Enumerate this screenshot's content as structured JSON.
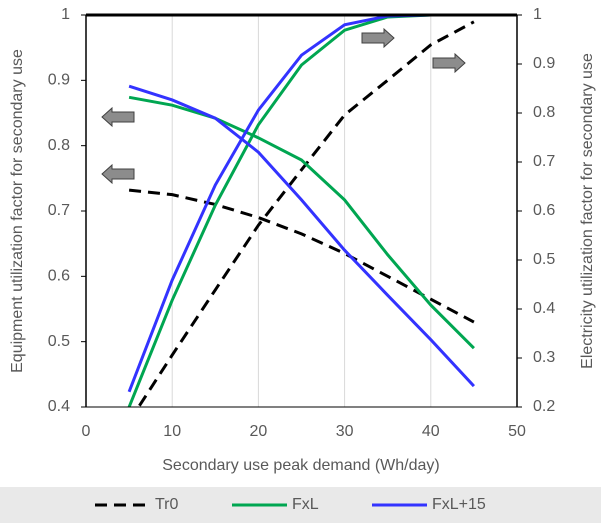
{
  "chart_data": {
    "type": "line",
    "x_label": "Secondary use peak demand (Wh/day)",
    "y_label": "Equipment utilization factor for secondary use",
    "y2_label": "Electricity utilization factor for secondary use",
    "x": [
      5,
      10,
      15,
      20,
      25,
      30,
      35,
      40,
      45
    ],
    "series": [
      {
        "name": "Tr0",
        "color": "#000000",
        "style": "dashed",
        "values": [
          0.732,
          0.725,
          0.71,
          0.69,
          0.665,
          0.635,
          0.6,
          0.565,
          0.53
        ],
        "y2_values": [
          0.17,
          0.306,
          0.439,
          0.571,
          0.684,
          0.796,
          0.867,
          0.939,
          0.986
        ]
      },
      {
        "name": "FxL",
        "color": "#00a651",
        "style": "solid",
        "values": [
          0.874,
          0.862,
          0.842,
          0.812,
          0.778,
          0.717,
          0.633,
          0.556,
          0.49
        ],
        "y2_values": [
          0.2,
          0.418,
          0.612,
          0.776,
          0.898,
          0.969,
          0.996,
          1,
          1
        ]
      },
      {
        "name": "FxL+15",
        "color": "#3333ff",
        "style": "solid",
        "values": [
          0.891,
          0.87,
          0.842,
          0.79,
          0.717,
          0.64,
          0.571,
          0.503,
          0.432
        ],
        "y2_values": [
          0.231,
          0.459,
          0.653,
          0.806,
          0.918,
          0.98,
          0.998,
          1,
          1
        ]
      }
    ],
    "xlim": [
      0,
      50
    ],
    "xticks": [
      0,
      10,
      20,
      30,
      40,
      50
    ],
    "ylim": [
      0.4,
      1
    ],
    "yticks": [
      0.4,
      0.5,
      0.6,
      0.7,
      0.8,
      0.9,
      1
    ],
    "y2lim": [
      0.2,
      1
    ],
    "y2ticks": [
      0.2,
      0.3,
      0.4,
      0.5,
      0.6,
      0.7,
      0.8,
      0.9,
      1
    ],
    "grid": true,
    "legend": "bottom"
  }
}
